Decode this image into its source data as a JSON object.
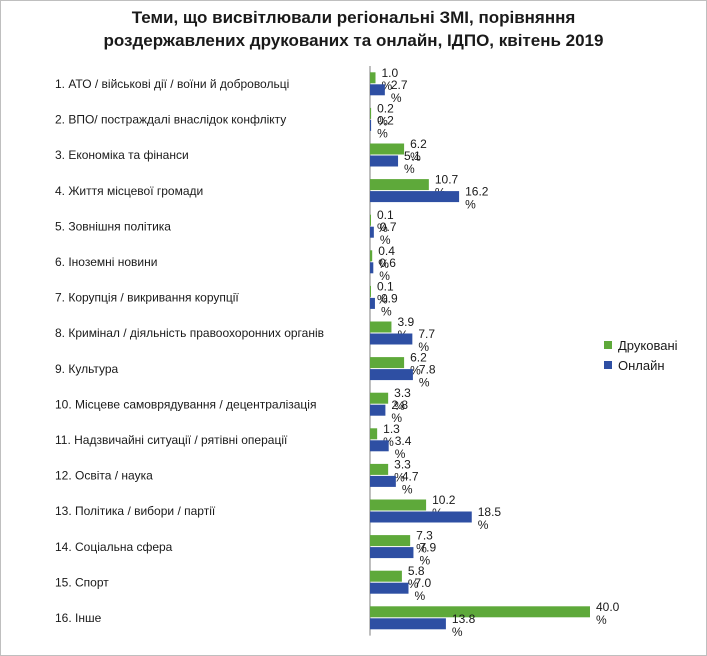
{
  "chart_data": {
    "type": "bar",
    "orientation": "horizontal",
    "title_line1": "Теми, що висвітлювали регіональні ЗМІ, порівняння",
    "title_line2": "роздержавлених друкованих та онлайн, ІДПО, квітень 2019",
    "categories": [
      "1. АТО / військові дії / воїни й добровольці",
      "2. ВПО/ постраждалі  внаслідок конфлікту",
      "3. Економіка та фінанси",
      "4. Життя місцевої громади",
      "5. Зовнішня політика",
      "6. Іноземні новини",
      "7. Корупція / викривання корупції",
      "8. Кримінал / діяльність правоохоронних органів",
      "9. Культура",
      "10. Місцеве самоврядування / децентралізація",
      "11. Надзвичайні ситуації / рятівні операції",
      "12. Освіта / наука",
      "13. Політика / вибори / партії",
      "14. Соціальна сфера",
      "15. Спорт",
      "16. Інше"
    ],
    "series": [
      {
        "name": "Друковані",
        "color": "#5ea93a",
        "values": [
          1.0,
          0.2,
          6.2,
          10.7,
          0.1,
          0.4,
          0.1,
          3.9,
          6.2,
          3.3,
          1.3,
          3.3,
          10.2,
          7.3,
          5.8,
          40.0
        ],
        "labels": [
          "1.0%",
          "0.2%",
          "6.2%",
          "10.7%",
          "0.1%",
          "0.4%",
          "0.1%",
          "3.9%",
          "6.2%",
          "3.3%",
          "1.3%",
          "3.3%",
          "10.2%",
          "7.3%",
          "5.8%",
          "40.0%"
        ]
      },
      {
        "name": "Онлайн",
        "color": "#2e4fa3",
        "values": [
          2.7,
          0.2,
          5.1,
          16.2,
          0.7,
          0.6,
          0.9,
          7.7,
          7.8,
          2.8,
          3.4,
          4.7,
          18.5,
          7.9,
          7.0,
          13.8
        ],
        "labels": [
          "2.7%",
          "0.2%",
          "5.1%",
          "16.2%",
          "0.7%",
          "0.6%",
          "0.9%",
          "7.7%",
          "7.8%",
          "2.8%",
          "3.4%",
          "4.7%",
          "18.5%",
          "7.9%",
          "7.0%",
          "13.8%"
        ]
      }
    ],
    "xlim": [
      0,
      40
    ],
    "grid": false,
    "legend_position": "right"
  }
}
